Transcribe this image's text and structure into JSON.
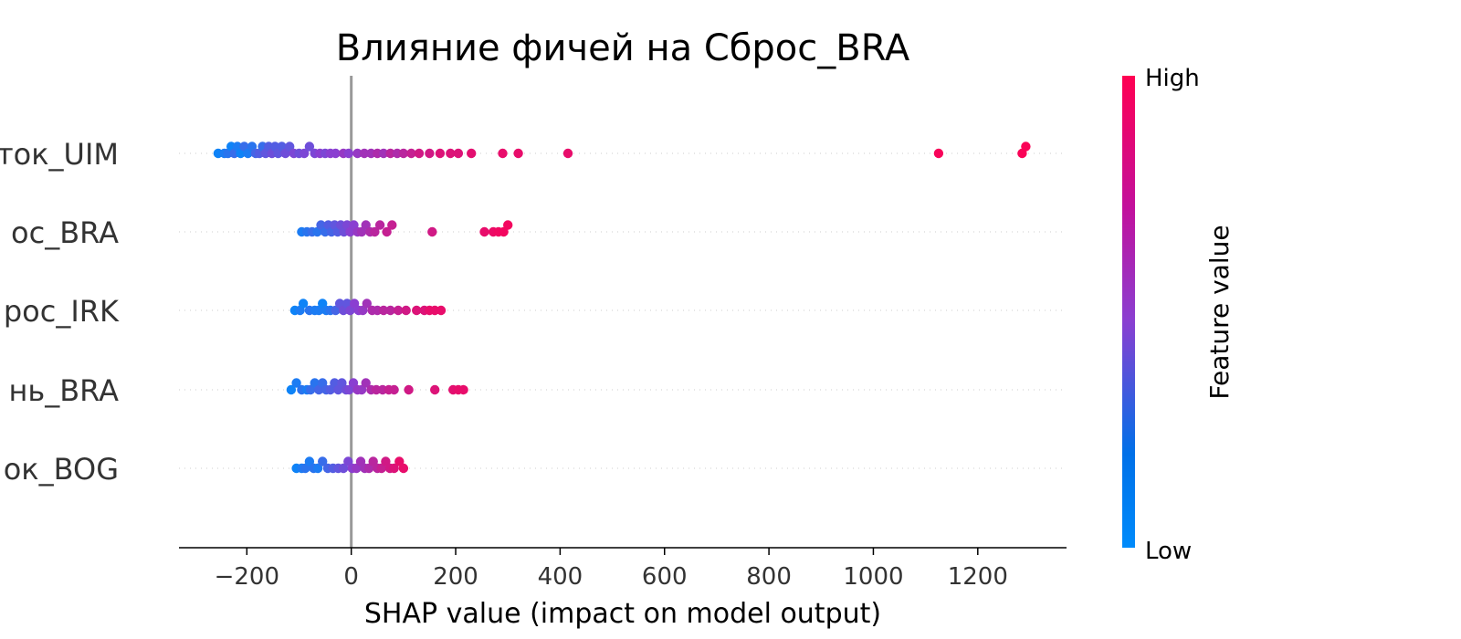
{
  "chart_data": {
    "type": "scatter",
    "subtype": "shap-beeswarm",
    "title": "Влияние фичей на Сброс_BRA",
    "xlabel": "SHAP value (impact on model output)",
    "xlim": [
      -330,
      1370
    ],
    "xticks": [
      -200,
      0,
      200,
      400,
      600,
      800,
      1000,
      1200
    ],
    "xtick_labels": [
      "−200",
      "0",
      "200",
      "400",
      "600",
      "800",
      "1000",
      "1200"
    ],
    "grid": false,
    "zero_line": true,
    "colors": {
      "low": "#008bfb",
      "mid": "#8a3fd1",
      "high": "#ff0052",
      "grid": "#cccccc",
      "zero": "#999999"
    },
    "colorbar": {
      "label": "Feature value",
      "low_label": "Low",
      "high_label": "High"
    },
    "features": [
      {
        "label": "ток_UIM",
        "points": [
          [
            -255,
            0.05
          ],
          [
            -243,
            0.1
          ],
          [
            -236,
            0.15
          ],
          [
            -230,
            0.05
          ],
          [
            -224,
            0.2
          ],
          [
            -218,
            0.1
          ],
          [
            -212,
            0.05
          ],
          [
            -205,
            0.2
          ],
          [
            -198,
            0.1
          ],
          [
            -190,
            0.15
          ],
          [
            -183,
            0.25
          ],
          [
            -176,
            0.3
          ],
          [
            -170,
            0.2
          ],
          [
            -164,
            0.35
          ],
          [
            -158,
            0.3
          ],
          [
            -152,
            0.4
          ],
          [
            -146,
            0.3
          ],
          [
            -140,
            0.35
          ],
          [
            -133,
            0.3
          ],
          [
            -126,
            0.4
          ],
          [
            -118,
            0.35
          ],
          [
            -110,
            0.45
          ],
          [
            -100,
            0.4
          ],
          [
            -90,
            0.45
          ],
          [
            -80,
            0.4
          ],
          [
            -70,
            0.45
          ],
          [
            -60,
            0.5
          ],
          [
            -50,
            0.45
          ],
          [
            -40,
            0.5
          ],
          [
            -30,
            0.5
          ],
          [
            -15,
            0.55
          ],
          [
            -5,
            0.5
          ],
          [
            12,
            0.55
          ],
          [
            25,
            0.6
          ],
          [
            38,
            0.6
          ],
          [
            50,
            0.65
          ],
          [
            62,
            0.6
          ],
          [
            75,
            0.7
          ],
          [
            88,
            0.65
          ],
          [
            100,
            0.7
          ],
          [
            115,
            0.75
          ],
          [
            130,
            0.8
          ],
          [
            150,
            0.8
          ],
          [
            170,
            0.85
          ],
          [
            190,
            0.85
          ],
          [
            205,
            0.85
          ],
          [
            230,
            0.88
          ],
          [
            290,
            0.9
          ],
          [
            320,
            0.9
          ],
          [
            415,
            0.9
          ],
          [
            1125,
            0.97
          ],
          [
            1285,
            0.98
          ],
          [
            1292,
            0.98
          ]
        ]
      },
      {
        "label": "ос_BRA",
        "points": [
          [
            -95,
            0.1
          ],
          [
            -85,
            0.15
          ],
          [
            -75,
            0.2
          ],
          [
            -65,
            0.15
          ],
          [
            -58,
            0.25
          ],
          [
            -50,
            0.2
          ],
          [
            -44,
            0.3
          ],
          [
            -38,
            0.25
          ],
          [
            -32,
            0.35
          ],
          [
            -26,
            0.3
          ],
          [
            -20,
            0.4
          ],
          [
            -14,
            0.4
          ],
          [
            -8,
            0.45
          ],
          [
            -2,
            0.5
          ],
          [
            5,
            0.5
          ],
          [
            12,
            0.55
          ],
          [
            20,
            0.6
          ],
          [
            28,
            0.6
          ],
          [
            36,
            0.65
          ],
          [
            45,
            0.7
          ],
          [
            55,
            0.7
          ],
          [
            68,
            0.75
          ],
          [
            78,
            0.75
          ],
          [
            155,
            0.8
          ],
          [
            255,
            0.9
          ],
          [
            272,
            0.92
          ],
          [
            282,
            0.94
          ],
          [
            292,
            0.95
          ],
          [
            300,
            0.95
          ]
        ]
      },
      {
        "label": "рос_IRK",
        "points": [
          [
            -108,
            0.05
          ],
          [
            -98,
            0.1
          ],
          [
            -92,
            0.05
          ],
          [
            -80,
            0.15
          ],
          [
            -70,
            0.1
          ],
          [
            -62,
            0.1
          ],
          [
            -55,
            0.05
          ],
          [
            -48,
            0.1
          ],
          [
            -40,
            0.15
          ],
          [
            -30,
            0.25
          ],
          [
            -22,
            0.35
          ],
          [
            -15,
            0.4
          ],
          [
            -8,
            0.35
          ],
          [
            -2,
            0.45
          ],
          [
            6,
            0.5
          ],
          [
            14,
            0.5
          ],
          [
            22,
            0.55
          ],
          [
            30,
            0.6
          ],
          [
            40,
            0.65
          ],
          [
            50,
            0.65
          ],
          [
            62,
            0.7
          ],
          [
            75,
            0.7
          ],
          [
            90,
            0.75
          ],
          [
            105,
            0.8
          ],
          [
            125,
            0.85
          ],
          [
            140,
            0.85
          ],
          [
            150,
            0.9
          ],
          [
            160,
            0.9
          ],
          [
            172,
            0.9
          ]
        ]
      },
      {
        "label": "нь_BRA",
        "points": [
          [
            -115,
            0.05
          ],
          [
            -105,
            0.1
          ],
          [
            -95,
            0.15
          ],
          [
            -85,
            0.1
          ],
          [
            -78,
            0.2
          ],
          [
            -70,
            0.15
          ],
          [
            -62,
            0.25
          ],
          [
            -55,
            0.2
          ],
          [
            -48,
            0.25
          ],
          [
            -40,
            0.3
          ],
          [
            -32,
            0.3
          ],
          [
            -25,
            0.35
          ],
          [
            -18,
            0.35
          ],
          [
            -10,
            0.4
          ],
          [
            -4,
            0.45
          ],
          [
            4,
            0.5
          ],
          [
            12,
            0.55
          ],
          [
            20,
            0.55
          ],
          [
            28,
            0.6
          ],
          [
            38,
            0.65
          ],
          [
            48,
            0.7
          ],
          [
            60,
            0.7
          ],
          [
            72,
            0.75
          ],
          [
            82,
            0.75
          ],
          [
            110,
            0.8
          ],
          [
            160,
            0.85
          ],
          [
            195,
            0.88
          ],
          [
            205,
            0.9
          ],
          [
            215,
            0.9
          ]
        ]
      },
      {
        "label": "ок_BOG",
        "points": [
          [
            -105,
            0.05
          ],
          [
            -95,
            0.1
          ],
          [
            -88,
            0.15
          ],
          [
            -80,
            0.1
          ],
          [
            -72,
            0.15
          ],
          [
            -64,
            0.1
          ],
          [
            -55,
            0.2
          ],
          [
            -45,
            0.25
          ],
          [
            -35,
            0.3
          ],
          [
            -25,
            0.35
          ],
          [
            -15,
            0.4
          ],
          [
            -6,
            0.45
          ],
          [
            2,
            0.5
          ],
          [
            10,
            0.55
          ],
          [
            18,
            0.6
          ],
          [
            26,
            0.6
          ],
          [
            34,
            0.65
          ],
          [
            42,
            0.7
          ],
          [
            50,
            0.7
          ],
          [
            58,
            0.75
          ],
          [
            66,
            0.8
          ],
          [
            74,
            0.8
          ],
          [
            82,
            0.85
          ],
          [
            92,
            0.9
          ],
          [
            100,
            0.9
          ]
        ]
      }
    ]
  }
}
